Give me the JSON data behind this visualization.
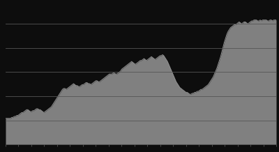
{
  "background_color": "#0d0d0d",
  "plot_bg_color": "#0d0d0d",
  "fill_color": "#808080",
  "line_color": "#909090",
  "grid_color": "#555555",
  "tick_color": "#666666",
  "ylim": [
    0.0,
    1.45
  ],
  "xlim": [
    0,
    219
  ],
  "grid_y_values": [
    0.25,
    0.5,
    0.75,
    1.0,
    1.25
  ],
  "figsize": [
    4.0,
    2.18
  ],
  "dpi": 100,
  "y_values": [
    0.27,
    0.27,
    0.27,
    0.27,
    0.27,
    0.28,
    0.28,
    0.29,
    0.29,
    0.3,
    0.3,
    0.31,
    0.32,
    0.33,
    0.33,
    0.34,
    0.35,
    0.36,
    0.36,
    0.35,
    0.34,
    0.34,
    0.35,
    0.35,
    0.36,
    0.37,
    0.37,
    0.36,
    0.36,
    0.35,
    0.34,
    0.33,
    0.34,
    0.35,
    0.36,
    0.37,
    0.38,
    0.39,
    0.41,
    0.43,
    0.45,
    0.47,
    0.49,
    0.51,
    0.53,
    0.55,
    0.57,
    0.58,
    0.58,
    0.57,
    0.58,
    0.59,
    0.6,
    0.61,
    0.62,
    0.63,
    0.62,
    0.61,
    0.61,
    0.6,
    0.6,
    0.61,
    0.62,
    0.62,
    0.63,
    0.64,
    0.64,
    0.63,
    0.63,
    0.62,
    0.63,
    0.64,
    0.65,
    0.66,
    0.66,
    0.65,
    0.65,
    0.66,
    0.67,
    0.68,
    0.69,
    0.7,
    0.71,
    0.72,
    0.73,
    0.73,
    0.73,
    0.74,
    0.74,
    0.73,
    0.73,
    0.74,
    0.75,
    0.76,
    0.78,
    0.79,
    0.8,
    0.81,
    0.82,
    0.83,
    0.84,
    0.85,
    0.86,
    0.85,
    0.84,
    0.83,
    0.84,
    0.85,
    0.86,
    0.87,
    0.87,
    0.88,
    0.89,
    0.88,
    0.87,
    0.88,
    0.89,
    0.9,
    0.91,
    0.9,
    0.89,
    0.88,
    0.89,
    0.9,
    0.91,
    0.92,
    0.92,
    0.93,
    0.92,
    0.9,
    0.88,
    0.86,
    0.83,
    0.8,
    0.77,
    0.74,
    0.71,
    0.68,
    0.65,
    0.63,
    0.61,
    0.59,
    0.58,
    0.57,
    0.56,
    0.55,
    0.54,
    0.54,
    0.53,
    0.52,
    0.52,
    0.53,
    0.53,
    0.54,
    0.54,
    0.55,
    0.55,
    0.56,
    0.57,
    0.57,
    0.58,
    0.59,
    0.6,
    0.61,
    0.62,
    0.64,
    0.66,
    0.68,
    0.7,
    0.73,
    0.76,
    0.79,
    0.83,
    0.87,
    0.91,
    0.96,
    1.01,
    1.06,
    1.1,
    1.14,
    1.17,
    1.19,
    1.21,
    1.22,
    1.23,
    1.24,
    1.24,
    1.25,
    1.26,
    1.27,
    1.26,
    1.25,
    1.26,
    1.27,
    1.27,
    1.26,
    1.25,
    1.26,
    1.27,
    1.28,
    1.28,
    1.29,
    1.29,
    1.29,
    1.28,
    1.28,
    1.29,
    1.28,
    1.29,
    1.29,
    1.29,
    1.29,
    1.28,
    1.28,
    1.29,
    1.29,
    1.28,
    1.29,
    1.29,
    1.29
  ]
}
